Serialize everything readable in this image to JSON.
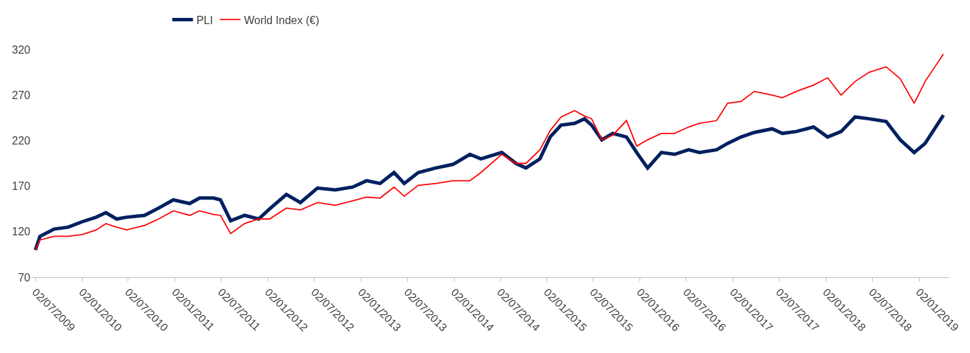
{
  "chart_data": {
    "type": "line",
    "x": [
      "2009-07-02",
      "2009-07-20",
      "2009-09-14",
      "2009-11-08",
      "2010-01-02",
      "2010-02-26",
      "2010-04-05",
      "2010-05-17",
      "2010-06-26",
      "2010-09-04",
      "2010-10-29",
      "2010-12-26",
      "2011-02-28",
      "2011-04-08",
      "2011-06-02",
      "2011-06-29",
      "2011-08-08",
      "2011-10-02",
      "2011-11-26",
      "2012-01-08",
      "2012-03-14",
      "2012-05-08",
      "2012-07-14",
      "2012-09-22",
      "2012-11-29",
      "2013-01-23",
      "2013-03-17",
      "2013-05-11",
      "2013-06-20",
      "2013-08-14",
      "2013-10-22",
      "2013-12-29",
      "2014-03-05",
      "2014-04-17",
      "2014-07-08",
      "2014-09-02",
      "2014-10-11",
      "2014-12-05",
      "2015-01-14",
      "2015-02-26",
      "2015-04-20",
      "2015-05-29",
      "2015-06-26",
      "2015-08-05",
      "2015-09-17",
      "2015-11-10",
      "2015-12-20",
      "2016-02-01",
      "2016-03-26",
      "2016-05-17",
      "2016-07-11",
      "2016-08-23",
      "2016-10-29",
      "2016-12-11",
      "2017-02-02",
      "2017-03-26",
      "2017-06-04",
      "2017-07-14",
      "2017-09-07",
      "2017-11-14",
      "2018-01-08",
      "2018-03-02",
      "2018-04-26",
      "2018-06-20",
      "2018-08-26",
      "2018-10-20",
      "2018-12-14",
      "2019-01-26",
      "2019-04-08"
    ],
    "series": [
      {
        "name": "PLI",
        "color": "#002060",
        "values": [
          100,
          115,
          123,
          125,
          131,
          136,
          141,
          134,
          136,
          138,
          146,
          155,
          151,
          157,
          157,
          155,
          132,
          138,
          134,
          145,
          161,
          152,
          168,
          166,
          169,
          176,
          173,
          185,
          173,
          185,
          190,
          194,
          205,
          200,
          207,
          195,
          190,
          200,
          224,
          237,
          239,
          244,
          237,
          221,
          228,
          224,
          207,
          190,
          207,
          205,
          210,
          207,
          210,
          217,
          224,
          229,
          233,
          228,
          230,
          235,
          224,
          230,
          246,
          244,
          241,
          221,
          207,
          217,
          248
        ]
      },
      {
        "name": "World Index (€)",
        "color": "#ff0000",
        "values": [
          100,
          111,
          115,
          115,
          117,
          122,
          129,
          125,
          122,
          127,
          134,
          143,
          138,
          143,
          139,
          138,
          118,
          129,
          134,
          134,
          146,
          144,
          152,
          149,
          154,
          158,
          157,
          169,
          159,
          171,
          173,
          176,
          176,
          185,
          205,
          195,
          195,
          210,
          231,
          246,
          253,
          247,
          244,
          221,
          226,
          242,
          214,
          221,
          228,
          228,
          235,
          239,
          242,
          261,
          263,
          274,
          270,
          267,
          274,
          281,
          289,
          270,
          285,
          295,
          301,
          288,
          261,
          285,
          315
        ]
      }
    ],
    "ylim": [
      70,
      320
    ],
    "yticks": [
      70,
      120,
      170,
      220,
      270,
      320
    ],
    "xlim": [
      "2009-06-15",
      "2019-05-01"
    ],
    "xticks": [
      {
        "value": "2009-07-02",
        "label": "02/07/2009"
      },
      {
        "value": "2010-01-02",
        "label": "02/01/2010"
      },
      {
        "value": "2010-07-02",
        "label": "02/07/2010"
      },
      {
        "value": "2011-01-02",
        "label": "02/01/2011"
      },
      {
        "value": "2011-07-02",
        "label": "02/07/2011"
      },
      {
        "value": "2012-01-02",
        "label": "02/01/2012"
      },
      {
        "value": "2012-07-02",
        "label": "02/07/2012"
      },
      {
        "value": "2013-01-02",
        "label": "02/01/2013"
      },
      {
        "value": "2013-07-02",
        "label": "02/07/2013"
      },
      {
        "value": "2014-01-02",
        "label": "02/01/2014"
      },
      {
        "value": "2014-07-02",
        "label": "02/07/2014"
      },
      {
        "value": "2015-01-02",
        "label": "02/01/2015"
      },
      {
        "value": "2015-07-02",
        "label": "02/07/2015"
      },
      {
        "value": "2016-01-02",
        "label": "02/01/2016"
      },
      {
        "value": "2016-07-02",
        "label": "02/07/2016"
      },
      {
        "value": "2017-01-02",
        "label": "02/01/2017"
      },
      {
        "value": "2017-07-02",
        "label": "02/07/2017"
      },
      {
        "value": "2018-01-02",
        "label": "02/01/2018"
      },
      {
        "value": "2018-07-02",
        "label": "02/07/2018"
      },
      {
        "value": "2019-01-02",
        "label": "02/01/2019"
      }
    ],
    "grid": false,
    "legend": "top",
    "marker": "none"
  }
}
